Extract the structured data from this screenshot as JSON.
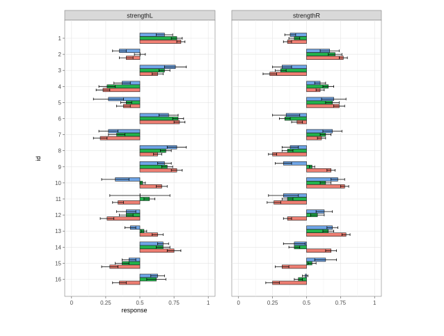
{
  "chart_data": {
    "type": "bar",
    "orientation": "horizontal",
    "baseline": 0.5,
    "facets": [
      "strengthL",
      "strengthR"
    ],
    "categories": [
      "1",
      "2",
      "3",
      "4",
      "5",
      "6",
      "7",
      "8",
      "9",
      "10",
      "11",
      "12",
      "13",
      "14",
      "15",
      "16"
    ],
    "xlabel": "response",
    "ylabel": "id",
    "xlim": [
      -0.05,
      1.05
    ],
    "xticks": [
      0,
      0.25,
      0.5,
      0.75,
      1
    ],
    "xtick_labels": [
      "0",
      "0.25",
      "0.5",
      "0.75",
      "1"
    ],
    "grid": true,
    "series_colors": [
      "#6fa5e6",
      "#22b24c",
      "#ee7f73"
    ],
    "panels": [
      {
        "facet": "strengthL",
        "series": [
          {
            "values": [
              0.68,
              0.35,
              0.76,
              0.37,
              0.27,
              0.71,
              0.27,
              0.77,
              0.68,
              0.32,
              0.5,
              0.4,
              0.43,
              0.67,
              0.42,
              0.63
            ]
          },
          {
            "values": [
              0.77,
              0.5,
              0.68,
              0.26,
              0.4,
              0.78,
              0.33,
              0.69,
              0.7,
              0.52,
              0.57,
              0.4,
              0.53,
              0.67,
              0.37,
              0.62
            ]
          },
          {
            "values": [
              0.8,
              0.4,
              0.63,
              0.23,
              0.38,
              0.79,
              0.21,
              0.63,
              0.77,
              0.66,
              0.34,
              0.26,
              0.63,
              0.75,
              0.28,
              0.35
            ]
          }
        ],
        "errors": [
          [
            0.06,
            0.05,
            0.08,
            0.06,
            0.11,
            0.07,
            0.07,
            0.07,
            0.05,
            0.1,
            0.22,
            0.07,
            0.04,
            0.04,
            0.05,
            0.05
          ],
          [
            0.04,
            0.04,
            0.04,
            0.06,
            0.04,
            0.04,
            0.06,
            0.04,
            0.04,
            0.02,
            0.04,
            0.05,
            0.02,
            0.05,
            0.05,
            0.07
          ],
          [
            0.03,
            0.05,
            0.04,
            0.05,
            0.05,
            0.04,
            0.05,
            0.03,
            0.04,
            0.04,
            0.04,
            0.05,
            0.04,
            0.05,
            0.06,
            0.05
          ]
        ]
      },
      {
        "facet": "strengthR",
        "series": [
          {
            "values": [
              0.38,
              0.67,
              0.32,
              0.6,
              0.7,
              0.35,
              0.69,
              0.38,
              0.33,
              0.73,
              0.33,
              0.63,
              0.69,
              0.41,
              0.64,
              0.49
            ]
          },
          {
            "values": [
              0.41,
              0.71,
              0.31,
              0.66,
              0.69,
              0.34,
              0.64,
              0.36,
              0.54,
              0.64,
              0.36,
              0.58,
              0.66,
              0.41,
              0.54,
              0.44
            ]
          },
          {
            "values": [
              0.36,
              0.77,
              0.23,
              0.6,
              0.74,
              0.43,
              0.61,
              0.25,
              0.68,
              0.78,
              0.26,
              0.36,
              0.79,
              0.68,
              0.32,
              0.25
            ]
          }
        ],
        "errors": [
          [
            0.04,
            0.07,
            0.07,
            0.04,
            0.09,
            0.1,
            0.07,
            0.06,
            0.06,
            0.05,
            0.11,
            0.06,
            0.04,
            0.08,
            0.08,
            0.02
          ],
          [
            0.04,
            0.05,
            0.04,
            0.04,
            0.05,
            0.04,
            0.04,
            0.04,
            0.02,
            0.04,
            0.04,
            0.05,
            0.04,
            0.04,
            0.03,
            0.03
          ],
          [
            0.03,
            0.03,
            0.05,
            0.03,
            0.04,
            0.04,
            0.03,
            0.03,
            0.03,
            0.03,
            0.05,
            0.03,
            0.03,
            0.04,
            0.05,
            0.05
          ]
        ]
      }
    ]
  }
}
